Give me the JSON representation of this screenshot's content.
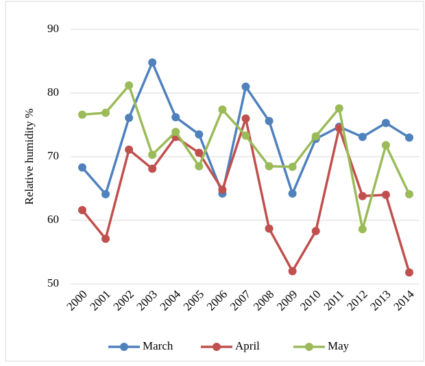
{
  "chart_data": {
    "type": "line",
    "y_label": "Relative humidity %",
    "categories": [
      "2000",
      "2001",
      "2002",
      "2003",
      "2004",
      "2005",
      "2006",
      "2007",
      "2008",
      "2009",
      "2010",
      "2011",
      "2012",
      "2013",
      "2014"
    ],
    "series": [
      {
        "name": "March",
        "color": "#4f81bd",
        "values": [
          68.3,
          64.1,
          76.1,
          84.8,
          76.2,
          73.5,
          64.2,
          81.0,
          75.6,
          64.2,
          72.8,
          74.7,
          73.1,
          75.3,
          73.0
        ]
      },
      {
        "name": "April",
        "color": "#c0504d",
        "values": [
          61.6,
          57.1,
          71.1,
          68.1,
          73.1,
          70.6,
          64.8,
          76.0,
          58.7,
          52.0,
          58.3,
          74.5,
          63.8,
          64.0,
          51.8
        ]
      },
      {
        "name": "May",
        "color": "#9bbb59",
        "values": [
          76.6,
          76.9,
          81.2,
          70.3,
          73.9,
          68.5,
          77.4,
          73.3,
          68.5,
          68.4,
          73.2,
          77.6,
          58.6,
          71.8,
          64.1
        ]
      }
    ],
    "ylim": [
      50,
      90
    ],
    "yticks": [
      50,
      60,
      70,
      80,
      90
    ],
    "grid": true,
    "legend": "bottom"
  }
}
